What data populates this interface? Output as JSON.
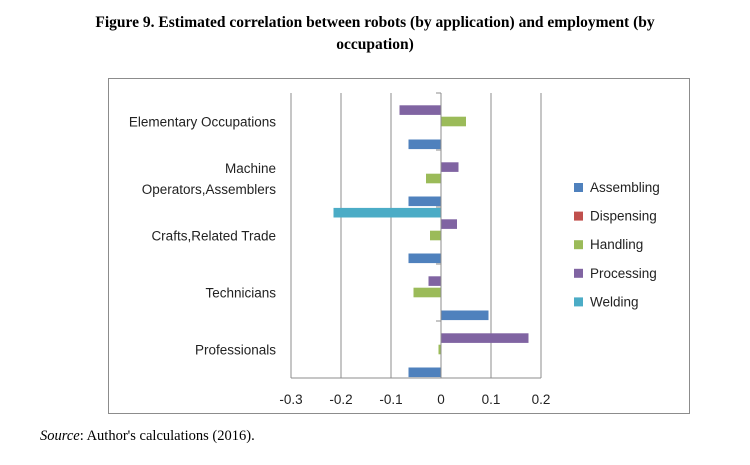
{
  "figure": {
    "title_line1": "Figure 9. Estimated correlation between robots (by application) and employment (by",
    "title_line2": "occupation)"
  },
  "source": {
    "label": "Source",
    "text": ": Author's calculations (2016)."
  },
  "chart_data": {
    "type": "bar",
    "orientation": "horizontal",
    "title": "",
    "xlabel": "",
    "ylabel": "",
    "xlim": [
      -0.3,
      0.2
    ],
    "xticks": [
      -0.3,
      -0.2,
      -0.1,
      0,
      0.1,
      0.2
    ],
    "xtick_labels": [
      "-0.3",
      "-0.2",
      "-0.1",
      "0",
      "0.1",
      "0.2"
    ],
    "grid": "vertical",
    "legend_position": "right",
    "categories": [
      {
        "lines": [
          "Elementary Occupations"
        ]
      },
      {
        "lines": [
          "Machine",
          "Operators,Assemblers"
        ]
      },
      {
        "lines": [
          "Crafts,Related Trade"
        ]
      },
      {
        "lines": [
          "Technicians"
        ]
      },
      {
        "lines": [
          "Professionals"
        ]
      }
    ],
    "series": [
      {
        "name": "Welding",
        "color": "#4bacc6",
        "values": [
          0,
          0,
          -0.215,
          0,
          0
        ]
      },
      {
        "name": "Processing",
        "color": "#8064a2",
        "values": [
          -0.083,
          0.035,
          0.032,
          -0.025,
          0.175
        ]
      },
      {
        "name": "Handling",
        "color": "#9bbb59",
        "values": [
          0.05,
          -0.03,
          -0.022,
          -0.055,
          -0.005
        ]
      },
      {
        "name": "Dispensing",
        "color": "#c0504d",
        "values": [
          0,
          0,
          0,
          0,
          0
        ]
      },
      {
        "name": "Assembling",
        "color": "#4f81bd",
        "values": [
          -0.065,
          -0.065,
          -0.065,
          0.095,
          -0.065
        ]
      }
    ]
  }
}
